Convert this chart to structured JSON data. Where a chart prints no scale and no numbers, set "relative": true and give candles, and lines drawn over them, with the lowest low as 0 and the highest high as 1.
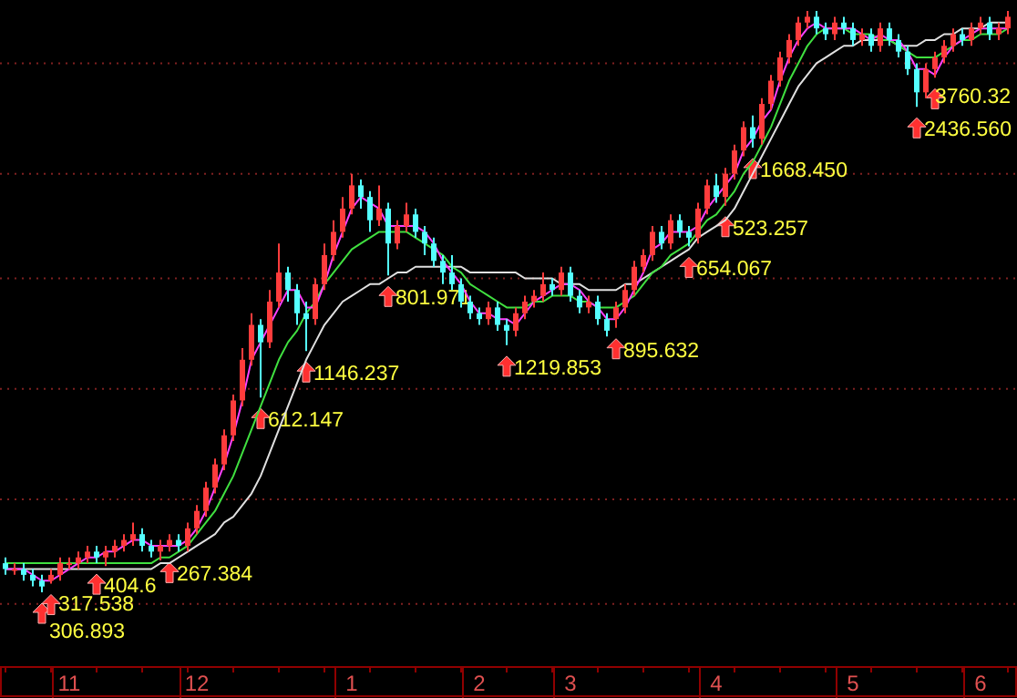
{
  "chart_data": {
    "type": "candlestick",
    "relative": true,
    "ref_lines": [
      {
        "axis": "y",
        "value": 0.91,
        "color": "#802020",
        "line_style": "dotted"
      },
      {
        "axis": "y",
        "value": 0.72,
        "color": "#802020",
        "line_style": "dotted"
      },
      {
        "axis": "y",
        "value": 0.54,
        "color": "#802020",
        "line_style": "dotted"
      },
      {
        "axis": "y",
        "value": 0.35,
        "color": "#802020",
        "line_style": "dotted"
      },
      {
        "axis": "y",
        "value": 0.16,
        "color": "#802020",
        "line_style": "dotted"
      },
      {
        "axis": "y",
        "value": -0.02,
        "color": "#802020",
        "line_style": "dotted"
      }
    ],
    "categories": [
      null,
      null,
      null,
      null,
      null,
      null,
      null,
      "11",
      null,
      null,
      null,
      null,
      null,
      null,
      null,
      null,
      null,
      null,
      null,
      null,
      null,
      "12",
      null,
      null,
      null,
      null,
      null,
      null,
      null,
      null,
      null,
      null,
      null,
      null,
      null,
      null,
      null,
      null,
      "1",
      null,
      null,
      null,
      null,
      null,
      null,
      null,
      null,
      null,
      null,
      null,
      null,
      null,
      "2",
      null,
      null,
      null,
      null,
      null,
      null,
      null,
      null,
      null,
      "3",
      null,
      null,
      null,
      null,
      null,
      null,
      null,
      null,
      null,
      null,
      null,
      null,
      null,
      null,
      null,
      "4",
      null,
      null,
      null,
      null,
      null,
      null,
      null,
      null,
      null,
      null,
      null,
      null,
      null,
      null,
      "5",
      null,
      null,
      null,
      null,
      null,
      null,
      null,
      null,
      null,
      null,
      null,
      null,
      null,
      "6",
      null,
      null,
      null
    ],
    "ohlc": [
      [
        0.05,
        0.06,
        0.03,
        0.04
      ],
      [
        0.04,
        0.05,
        0.03,
        0.04
      ],
      [
        0.04,
        0.05,
        0.02,
        0.03
      ],
      [
        0.03,
        0.04,
        0.01,
        0.02
      ],
      [
        0.02,
        0.03,
        0,
        0.01
      ],
      [
        0.02,
        0.04,
        0.015,
        0.03
      ],
      [
        0.03,
        0.06,
        0.02,
        0.05
      ],
      [
        0.05,
        0.06,
        0.04,
        0.05
      ],
      [
        0.05,
        0.07,
        0.04,
        0.06
      ],
      [
        0.06,
        0.08,
        0.05,
        0.07
      ],
      [
        0.07,
        0.08,
        0.05,
        0.06
      ],
      [
        0.06,
        0.08,
        0.045,
        0.07
      ],
      [
        0.07,
        0.09,
        0.06,
        0.08
      ],
      [
        0.08,
        0.1,
        0.07,
        0.09
      ],
      [
        0.09,
        0.12,
        0.08,
        0.1
      ],
      [
        0.1,
        0.11,
        0.07,
        0.08
      ],
      [
        0.08,
        0.09,
        0.06,
        0.07
      ],
      [
        0.07,
        0.09,
        0.055,
        0.08
      ],
      [
        0.08,
        0.1,
        0.07,
        0.09
      ],
      [
        0.09,
        0.1,
        0.07,
        0.08
      ],
      [
        0.08,
        0.12,
        0.07,
        0.11
      ],
      [
        0.11,
        0.15,
        0.1,
        0.14
      ],
      [
        0.14,
        0.19,
        0.13,
        0.18
      ],
      [
        0.18,
        0.23,
        0.17,
        0.22
      ],
      [
        0.22,
        0.28,
        0.21,
        0.27
      ],
      [
        0.27,
        0.34,
        0.26,
        0.33
      ],
      [
        0.33,
        0.42,
        0.32,
        0.4
      ],
      [
        0.4,
        0.48,
        0.39,
        0.46
      ],
      [
        0.46,
        0.47,
        0.335,
        0.43
      ],
      [
        0.43,
        0.52,
        0.42,
        0.5
      ],
      [
        0.5,
        0.6,
        0.49,
        0.55
      ],
      [
        0.55,
        0.56,
        0.5,
        0.52
      ],
      [
        0.52,
        0.53,
        0.46,
        0.48
      ],
      [
        0.48,
        0.5,
        0.415,
        0.47
      ],
      [
        0.47,
        0.54,
        0.46,
        0.53
      ],
      [
        0.53,
        0.6,
        0.52,
        0.58
      ],
      [
        0.58,
        0.64,
        0.57,
        0.62
      ],
      [
        0.62,
        0.68,
        0.61,
        0.66
      ],
      [
        0.66,
        0.72,
        0.65,
        0.7
      ],
      [
        0.7,
        0.71,
        0.66,
        0.68
      ],
      [
        0.68,
        0.69,
        0.62,
        0.64
      ],
      [
        0.64,
        0.7,
        0.63,
        0.66
      ],
      [
        0.66,
        0.67,
        0.545,
        0.6
      ],
      [
        0.6,
        0.64,
        0.59,
        0.63
      ],
      [
        0.63,
        0.67,
        0.62,
        0.65
      ],
      [
        0.65,
        0.66,
        0.61,
        0.62
      ],
      [
        0.62,
        0.63,
        0.58,
        0.6
      ],
      [
        0.6,
        0.61,
        0.56,
        0.57
      ],
      [
        0.57,
        0.58,
        0.53,
        0.55
      ],
      [
        0.55,
        0.58,
        0.52,
        0.53
      ],
      [
        0.53,
        0.54,
        0.49,
        0.5
      ],
      [
        0.5,
        0.51,
        0.47,
        0.48
      ],
      [
        0.48,
        0.49,
        0.46,
        0.47
      ],
      [
        0.47,
        0.5,
        0.46,
        0.49
      ],
      [
        0.49,
        0.5,
        0.45,
        0.46
      ],
      [
        0.46,
        0.47,
        0.425,
        0.45
      ],
      [
        0.45,
        0.49,
        0.44,
        0.48
      ],
      [
        0.48,
        0.51,
        0.47,
        0.5
      ],
      [
        0.5,
        0.52,
        0.49,
        0.51
      ],
      [
        0.51,
        0.55,
        0.5,
        0.53
      ],
      [
        0.53,
        0.54,
        0.51,
        0.52
      ],
      [
        0.52,
        0.56,
        0.51,
        0.55
      ],
      [
        0.55,
        0.56,
        0.5,
        0.51
      ],
      [
        0.51,
        0.52,
        0.48,
        0.49
      ],
      [
        0.49,
        0.51,
        0.48,
        0.5
      ],
      [
        0.5,
        0.51,
        0.46,
        0.47
      ],
      [
        0.47,
        0.48,
        0.44,
        0.45
      ],
      [
        0.47,
        0.5,
        0.455,
        0.49
      ],
      [
        0.49,
        0.53,
        0.48,
        0.52
      ],
      [
        0.52,
        0.57,
        0.51,
        0.56
      ],
      [
        0.56,
        0.59,
        0.55,
        0.58
      ],
      [
        0.58,
        0.63,
        0.57,
        0.62
      ],
      [
        0.62,
        0.63,
        0.59,
        0.6
      ],
      [
        0.6,
        0.65,
        0.59,
        0.64
      ],
      [
        0.64,
        0.65,
        0.61,
        0.62
      ],
      [
        0.62,
        0.63,
        0.595,
        0.61
      ],
      [
        0.61,
        0.67,
        0.6,
        0.66
      ],
      [
        0.66,
        0.71,
        0.65,
        0.7
      ],
      [
        0.7,
        0.72,
        0.67,
        0.68
      ],
      [
        0.68,
        0.73,
        0.665,
        0.72
      ],
      [
        0.72,
        0.77,
        0.71,
        0.76
      ],
      [
        0.76,
        0.81,
        0.75,
        0.8
      ],
      [
        0.8,
        0.82,
        0.765,
        0.78
      ],
      [
        0.78,
        0.85,
        0.77,
        0.84
      ],
      [
        0.84,
        0.89,
        0.83,
        0.88
      ],
      [
        0.88,
        0.93,
        0.87,
        0.92
      ],
      [
        0.92,
        0.96,
        0.91,
        0.95
      ],
      [
        0.95,
        0.99,
        0.94,
        0.98
      ],
      [
        0.98,
        1,
        0.97,
        0.99
      ],
      [
        0.99,
        1,
        0.96,
        0.97
      ],
      [
        0.97,
        0.98,
        0.95,
        0.96
      ],
      [
        0.96,
        0.99,
        0.95,
        0.98
      ],
      [
        0.98,
        0.99,
        0.96,
        0.97
      ],
      [
        0.97,
        0.98,
        0.94,
        0.95
      ],
      [
        0.95,
        0.97,
        0.94,
        0.96
      ],
      [
        0.96,
        0.97,
        0.93,
        0.94
      ],
      [
        0.94,
        0.98,
        0.93,
        0.97
      ],
      [
        0.97,
        0.98,
        0.94,
        0.95
      ],
      [
        0.95,
        0.96,
        0.92,
        0.93
      ],
      [
        0.93,
        0.94,
        0.89,
        0.9
      ],
      [
        0.9,
        0.91,
        0.835,
        0.86
      ],
      [
        0.86,
        0.91,
        0.85,
        0.9
      ],
      [
        0.9,
        0.93,
        0.885,
        0.92
      ],
      [
        0.92,
        0.95,
        0.91,
        0.94
      ],
      [
        0.94,
        0.97,
        0.93,
        0.96
      ],
      [
        0.96,
        0.97,
        0.94,
        0.95
      ],
      [
        0.95,
        0.98,
        0.94,
        0.97
      ],
      [
        0.97,
        0.99,
        0.96,
        0.98
      ],
      [
        0.98,
        0.99,
        0.95,
        0.96
      ],
      [
        0.96,
        0.98,
        0.95,
        0.97
      ],
      [
        0.97,
        1,
        0.96,
        0.99
      ]
    ],
    "series": [
      {
        "type": "line",
        "color": "#e0e0e0",
        "values": [
          0.04,
          0.04,
          0.04,
          0.04,
          0.04,
          0.04,
          0.04,
          0.04,
          0.04,
          0.04,
          0.04,
          0.04,
          0.04,
          0.04,
          0.04,
          0.04,
          0.04,
          0.05,
          0.05,
          0.06,
          0.07,
          0.08,
          0.09,
          0.1,
          0.12,
          0.13,
          0.15,
          0.17,
          0.2,
          0.24,
          0.28,
          0.32,
          0.36,
          0.4,
          0.43,
          0.46,
          0.48,
          0.5,
          0.51,
          0.52,
          0.53,
          0.53,
          0.54,
          0.55,
          0.55,
          0.56,
          0.56,
          0.56,
          0.56,
          0.56,
          0.56,
          0.55,
          0.55,
          0.55,
          0.55,
          0.55,
          0.55,
          0.54,
          0.54,
          0.54,
          0.54,
          0.53,
          0.53,
          0.53,
          0.52,
          0.52,
          0.52,
          0.52,
          0.53,
          0.53,
          0.54,
          0.55,
          0.56,
          0.57,
          0.58,
          0.59,
          0.61,
          0.62,
          0.63,
          0.64,
          0.66,
          0.69,
          0.72,
          0.75,
          0.78,
          0.81,
          0.84,
          0.87,
          0.89,
          0.91,
          0.92,
          0.93,
          0.94,
          0.94,
          0.95,
          0.95,
          0.95,
          0.95,
          0.94,
          0.94,
          0.94,
          0.95,
          0.95,
          0.96,
          0.96,
          0.97,
          0.97,
          0.97,
          0.98,
          0.98,
          0.98
        ]
      },
      {
        "type": "line",
        "color": "#40e040",
        "values": [
          0.05,
          0.05,
          0.05,
          0.05,
          0.05,
          0.05,
          0.05,
          0.05,
          0.05,
          0.05,
          0.05,
          0.05,
          0.05,
          0.05,
          0.05,
          0.05,
          0.05,
          0.06,
          0.06,
          0.07,
          0.08,
          0.1,
          0.12,
          0.14,
          0.17,
          0.2,
          0.24,
          0.28,
          0.32,
          0.36,
          0.4,
          0.43,
          0.45,
          0.48,
          0.5,
          0.53,
          0.55,
          0.57,
          0.59,
          0.6,
          0.61,
          0.62,
          0.62,
          0.62,
          0.62,
          0.61,
          0.6,
          0.59,
          0.58,
          0.56,
          0.55,
          0.53,
          0.52,
          0.51,
          0.5,
          0.49,
          0.49,
          0.49,
          0.5,
          0.5,
          0.51,
          0.51,
          0.51,
          0.5,
          0.5,
          0.49,
          0.49,
          0.49,
          0.5,
          0.51,
          0.53,
          0.55,
          0.56,
          0.58,
          0.59,
          0.6,
          0.62,
          0.64,
          0.65,
          0.67,
          0.69,
          0.72,
          0.74,
          0.77,
          0.8,
          0.84,
          0.88,
          0.91,
          0.94,
          0.96,
          0.97,
          0.97,
          0.97,
          0.96,
          0.96,
          0.96,
          0.95,
          0.95,
          0.94,
          0.93,
          0.92,
          0.92,
          0.92,
          0.93,
          0.94,
          0.95,
          0.95,
          0.96,
          0.96,
          0.96,
          0.97
        ]
      },
      {
        "type": "line",
        "color": "#ff40ff",
        "values": [
          0.04,
          0.04,
          0.04,
          0.03,
          0.02,
          0.02,
          0.03,
          0.04,
          0.05,
          0.06,
          0.06,
          0.07,
          0.07,
          0.08,
          0.09,
          0.09,
          0.08,
          0.08,
          0.08,
          0.08,
          0.09,
          0.11,
          0.14,
          0.18,
          0.22,
          0.27,
          0.33,
          0.4,
          0.43,
          0.46,
          0.49,
          0.52,
          0.52,
          0.49,
          0.49,
          0.53,
          0.58,
          0.62,
          0.66,
          0.68,
          0.67,
          0.66,
          0.63,
          0.63,
          0.63,
          0.63,
          0.62,
          0.6,
          0.57,
          0.55,
          0.53,
          0.5,
          0.48,
          0.48,
          0.47,
          0.47,
          0.46,
          0.48,
          0.5,
          0.51,
          0.52,
          0.53,
          0.53,
          0.52,
          0.5,
          0.49,
          0.47,
          0.47,
          0.49,
          0.52,
          0.55,
          0.59,
          0.6,
          0.62,
          0.62,
          0.62,
          0.63,
          0.66,
          0.68,
          0.7,
          0.72,
          0.76,
          0.78,
          0.81,
          0.83,
          0.88,
          0.92,
          0.95,
          0.97,
          0.98,
          0.97,
          0.97,
          0.97,
          0.97,
          0.96,
          0.95,
          0.96,
          0.95,
          0.95,
          0.93,
          0.9,
          0.9,
          0.89,
          0.92,
          0.94,
          0.95,
          0.96,
          0.97,
          0.97,
          0.97,
          0.97
        ]
      }
    ],
    "annotations": [
      "306.893",
      "317.538",
      "404.6",
      "267.384",
      "612.147",
      "1146.237",
      "801.971",
      "1219.853",
      "895.632",
      "654.067",
      "523.257",
      "1668.450",
      "2436.560",
      "3760.32"
    ]
  }
}
